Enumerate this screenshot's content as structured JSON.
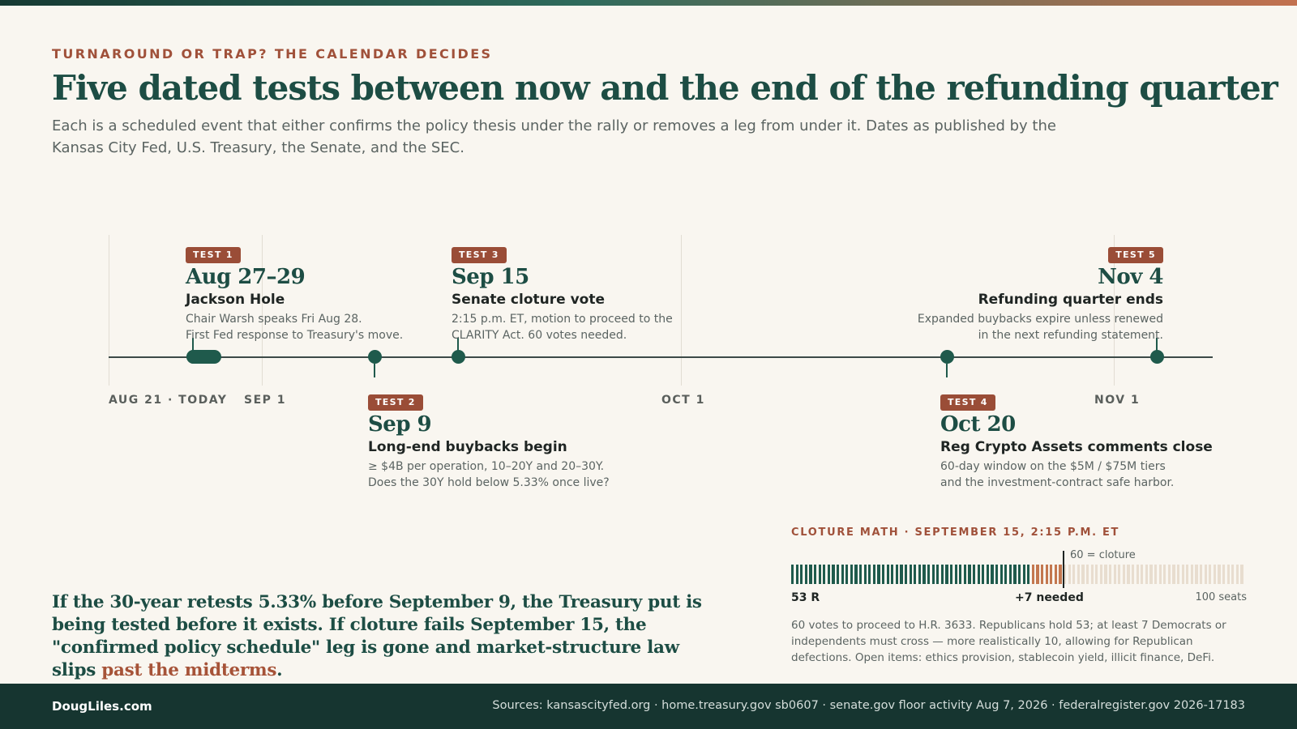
{
  "header": {
    "kicker": "TURNAROUND OR TRAP? THE CALENDAR DECIDES",
    "title": "Five dated tests between now and the end of the refunding quarter",
    "subtitle": "Each is a scheduled event that either confirms the policy thesis under the rally or removes a leg from under it. Dates as published by the Kansas City Fed, U.S. Treasury, the Senate, and the SEC."
  },
  "timeline": {
    "axis_labels": [
      "AUG 21 · TODAY",
      "SEP 1",
      "OCT 1",
      "NOV 1"
    ],
    "events": [
      {
        "badge": "TEST 1",
        "date": "Aug 27–29",
        "title": "Jackson Hole",
        "desc_lines": [
          "Chair Warsh speaks Fri Aug 28.",
          "First Fed response to Treasury's move."
        ]
      },
      {
        "badge": "TEST 2",
        "date": "Sep 9",
        "title": "Long-end buybacks begin",
        "desc_lines": [
          "≥ $4B per operation, 10–20Y and 20–30Y.",
          "Does the 30Y hold below 5.33% once live?"
        ]
      },
      {
        "badge": "TEST 3",
        "date": "Sep 15",
        "title": "Senate cloture vote",
        "desc_lines": [
          "2:15 p.m. ET, motion to proceed to the",
          "CLARITY Act. 60 votes needed."
        ]
      },
      {
        "badge": "TEST 4",
        "date": "Oct 20",
        "title": "Reg Crypto Assets comments close",
        "desc_lines": [
          "60-day window on the $5M / $75M tiers",
          "and the investment-contract safe harbor."
        ]
      },
      {
        "badge": "TEST 5",
        "date": "Nov 4",
        "title": "Refunding quarter ends",
        "desc_lines": [
          "Expanded buybacks expire unless renewed",
          "in the next refunding statement."
        ]
      }
    ]
  },
  "quote": {
    "text": "If the 30-year retests 5.33% before September 9, the Treasury put is being tested before it exists. If cloture fails September 15, the \"confirmed policy schedule\" leg is gone and market-structure law slips ",
    "highlight": "past the midterms",
    "end": "."
  },
  "cloture": {
    "kicker": "CLOTURE MATH · SEPTEMBER 15, 2:15 P.M. ET",
    "threshold_label": "60 = cloture",
    "held_label": "53 R",
    "needed_label": "+7 needed",
    "total_label": "100 seats",
    "seats_total": 100,
    "seats_held": 53,
    "seats_needed": 7,
    "colors": {
      "held": "#1f5a4c",
      "needed": "#c3774f",
      "remaining": "#e8ddcf"
    },
    "description": "60 votes to proceed to H.R. 3633. Republicans hold 53; at least 7 Democrats or independents must cross — more realistically 10, allowing for Republican defections. Open items: ethics provision, stablecoin yield, illicit finance, DeFi."
  },
  "footer": {
    "brand": "DougLiles.com",
    "sources": "Sources: kansascityfed.org · home.treasury.gov sb0607 · senate.gov floor activity Aug 7, 2026 · federalregister.gov 2026-17183"
  }
}
